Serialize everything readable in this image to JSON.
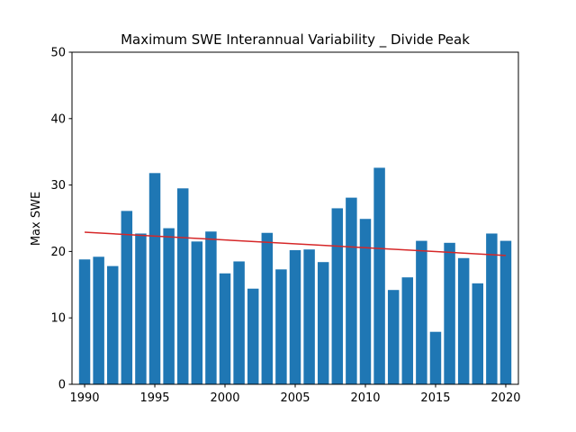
{
  "chart_data": {
    "type": "bar",
    "title": "Maximum SWE Interannual Variability _ Divide Peak",
    "xlabel": "",
    "ylabel": "Max SWE",
    "xlim": [
      1989.1,
      2020.9
    ],
    "ylim": [
      0,
      50
    ],
    "x_ticks": [
      1990,
      1995,
      2000,
      2005,
      2010,
      2015,
      2020
    ],
    "y_ticks": [
      0,
      10,
      20,
      30,
      40,
      50
    ],
    "grid": false,
    "colors": {
      "bar": "#1f77b4",
      "trend": "#d62728"
    },
    "x": [
      1990,
      1991,
      1992,
      1993,
      1994,
      1995,
      1996,
      1997,
      1998,
      1999,
      2000,
      2001,
      2002,
      2003,
      2004,
      2005,
      2006,
      2007,
      2008,
      2009,
      2010,
      2011,
      2012,
      2013,
      2014,
      2015,
      2016,
      2017,
      2018,
      2019,
      2020
    ],
    "values": [
      18.8,
      19.2,
      17.8,
      26.1,
      22.7,
      31.8,
      23.5,
      29.5,
      21.5,
      23.0,
      16.7,
      18.5,
      14.4,
      22.8,
      17.3,
      20.2,
      20.3,
      18.4,
      26.5,
      28.1,
      24.9,
      32.6,
      14.2,
      16.1,
      21.6,
      7.9,
      21.3,
      19.0,
      15.2,
      22.7,
      21.6
    ],
    "trend": {
      "x": [
        1990,
        2020
      ],
      "y": [
        22.9,
        19.4
      ]
    }
  }
}
